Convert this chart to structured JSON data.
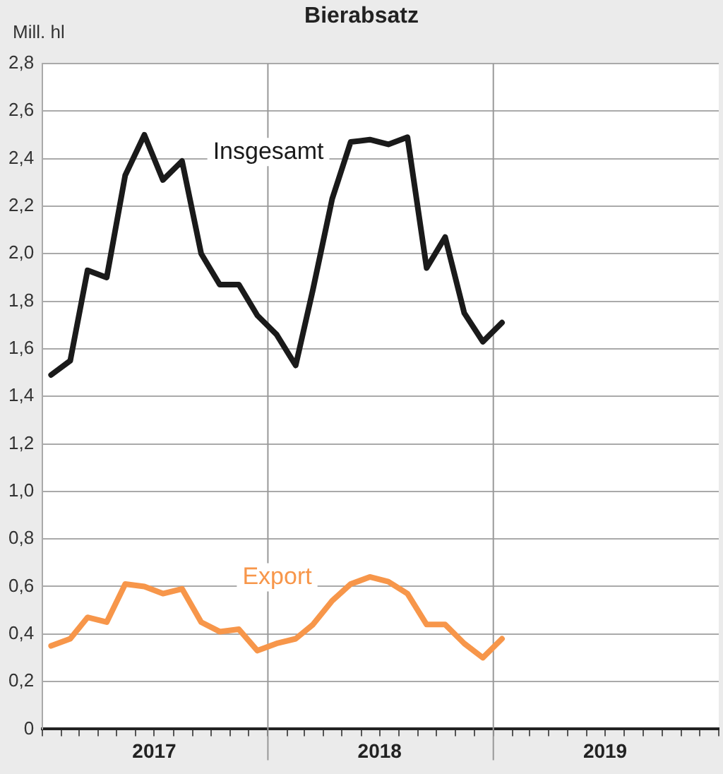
{
  "chart_data": {
    "type": "line",
    "title": "Bierabsatz",
    "ylabel": "Mill. hl",
    "x": [
      "2017-01-15",
      "2017-02-15",
      "2017-03-15",
      "2017-04-15",
      "2017-05-15",
      "2017-06-15",
      "2017-07-15",
      "2017-08-15",
      "2017-09-15",
      "2017-10-15",
      "2017-11-15",
      "2017-12-15",
      "2018-01-15",
      "2018-02-15",
      "2018-03-15",
      "2018-04-15",
      "2018-05-15",
      "2018-06-15",
      "2018-07-15",
      "2018-08-15",
      "2018-09-15",
      "2018-10-15",
      "2018-11-15",
      "2018-12-15",
      "2019-01-15"
    ],
    "series": [
      {
        "name": "Insgesamt",
        "color": "#1a1a1a",
        "values": [
          1.49,
          1.55,
          1.93,
          1.9,
          2.33,
          2.5,
          2.31,
          2.39,
          2.0,
          1.87,
          1.87,
          1.74,
          1.66,
          1.53,
          1.85,
          2.23,
          2.47,
          2.48,
          2.46,
          2.49,
          1.94,
          2.07,
          1.75,
          1.63,
          1.71
        ]
      },
      {
        "name": "Export",
        "color": "#f7964a",
        "values": [
          0.35,
          0.38,
          0.47,
          0.45,
          0.61,
          0.6,
          0.57,
          0.59,
          0.45,
          0.41,
          0.42,
          0.33,
          0.36,
          0.38,
          0.44,
          0.54,
          0.61,
          0.64,
          0.62,
          0.57,
          0.44,
          0.44,
          0.36,
          0.3,
          0.38
        ]
      }
    ],
    "xlim": [
      "2017",
      "2020"
    ],
    "xticks": [
      {
        "value": "2017",
        "label": null
      },
      {
        "value": "2017-02",
        "label": null
      },
      {
        "value": "2017-03",
        "label": null
      },
      {
        "value": "2017-04",
        "label": null
      },
      {
        "value": "2017-05",
        "label": null
      },
      {
        "value": "2017-06",
        "label": null
      },
      {
        "value": "2017-07",
        "label": "2017"
      },
      {
        "value": "2017-08",
        "label": null
      },
      {
        "value": "2017-09",
        "label": null
      },
      {
        "value": "2017-10",
        "label": null
      },
      {
        "value": "2017-11",
        "label": null
      },
      {
        "value": "2017-12",
        "label": null
      },
      {
        "value": "2018",
        "label": null
      },
      {
        "value": "2018-02",
        "label": null
      },
      {
        "value": "2018-03",
        "label": null
      },
      {
        "value": "2018-04",
        "label": null
      },
      {
        "value": "2018-05",
        "label": null
      },
      {
        "value": "2018-06",
        "label": null
      },
      {
        "value": "2018-07",
        "label": "2018"
      },
      {
        "value": "2018-08",
        "label": null
      },
      {
        "value": "2018-09",
        "label": null
      },
      {
        "value": "2018-10",
        "label": null
      },
      {
        "value": "2018-11",
        "label": null
      },
      {
        "value": "2018-12",
        "label": null
      },
      {
        "value": "2019",
        "label": null
      },
      {
        "value": "2019-02",
        "label": null
      },
      {
        "value": "2019-03",
        "label": null
      },
      {
        "value": "2019-04",
        "label": null
      },
      {
        "value": "2019-05",
        "label": null
      },
      {
        "value": "2019-06",
        "label": null
      },
      {
        "value": "2019-07",
        "label": "2019"
      },
      {
        "value": "2019-08",
        "label": null
      },
      {
        "value": "2019-09",
        "label": null
      },
      {
        "value": "2019-10",
        "label": null
      },
      {
        "value": "2019-11",
        "label": null
      },
      {
        "value": "2019-12",
        "label": null
      },
      {
        "value": "2020",
        "label": null
      }
    ],
    "ylim": [
      0,
      2.8
    ],
    "yticks": [
      0,
      {
        "value": 0.2,
        "label": "0,2"
      },
      {
        "value": 0.4,
        "label": "0,4"
      },
      {
        "value": 0.6,
        "label": "0,6"
      },
      {
        "value": 0.8,
        "label": "0,8"
      },
      {
        "value": 1.0,
        "label": "1,0"
      },
      {
        "value": 1.2,
        "label": "1,2"
      },
      {
        "value": 1.4,
        "label": "1,4"
      },
      {
        "value": 1.6,
        "label": "1,6"
      },
      {
        "value": 1.8,
        "label": "1,8"
      },
      {
        "value": 2.0,
        "label": "2,0"
      },
      {
        "value": 2.2,
        "label": "2,2"
      },
      {
        "value": 2.4,
        "label": "2,4"
      },
      {
        "value": 2.6,
        "label": "2,6"
      },
      {
        "value": 2.8,
        "label": "2,8"
      }
    ],
    "grid": "y",
    "legend": false,
    "marker": "none",
    "line_style": "solid",
    "ref_lines": [
      {
        "axis": "x",
        "value": "2018",
        "color": "#999999"
      },
      {
        "axis": "x",
        "value": "2019",
        "color": "#999999"
      }
    ]
  }
}
